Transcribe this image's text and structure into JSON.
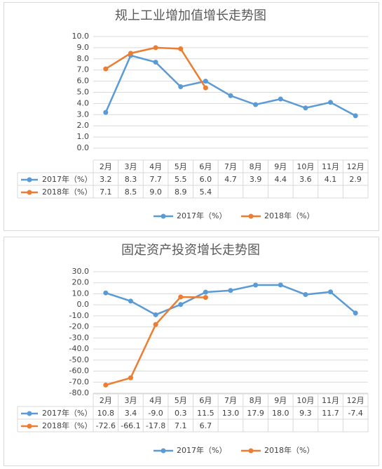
{
  "chart_data": [
    {
      "type": "line",
      "title": "规上工业增加值增长走势图",
      "categories": [
        "2月",
        "3月",
        "4月",
        "5月",
        "6月",
        "7月",
        "8月",
        "9月",
        "10月",
        "11月",
        "12月"
      ],
      "series": [
        {
          "name": "2017年（%）",
          "color": "#5b9bd5",
          "values": [
            3.2,
            8.3,
            7.7,
            5.5,
            6.0,
            4.7,
            3.9,
            4.4,
            3.6,
            4.1,
            2.9
          ],
          "value_labels": [
            "3.2",
            "8.3",
            "7.7",
            "5.5",
            "6.0",
            "4.7",
            "3.9",
            "4.4",
            "3.6",
            "4.1",
            "2.9"
          ]
        },
        {
          "name": "2018年（%）",
          "color": "#ed7d31",
          "values": [
            7.1,
            8.5,
            9.0,
            8.9,
            5.4,
            null,
            null,
            null,
            null,
            null,
            null
          ],
          "value_labels": [
            "7.1",
            "8.5",
            "9.0",
            "8.9",
            "5.4",
            null,
            null,
            null,
            null,
            null,
            null
          ]
        }
      ],
      "ylim": [
        0,
        10
      ],
      "yticks": [
        {
          "value": 0,
          "label": "0.0"
        },
        {
          "value": 1,
          "label": "1.0"
        },
        {
          "value": 2,
          "label": "2.0"
        },
        {
          "value": 3,
          "label": "3.0"
        },
        {
          "value": 4,
          "label": "4.0"
        },
        {
          "value": 5,
          "label": "5.0"
        },
        {
          "value": 6,
          "label": "6.0"
        },
        {
          "value": 7,
          "label": "7.0"
        },
        {
          "value": 8,
          "label": "8.0"
        },
        {
          "value": 9,
          "label": "9.0"
        },
        {
          "value": 10,
          "label": "10.0"
        }
      ],
      "grid": true,
      "legend": "bottom"
    },
    {
      "type": "line",
      "title": "固定资产投资增长走势图",
      "categories": [
        "2月",
        "3月",
        "4月",
        "5月",
        "6月",
        "7月",
        "8月",
        "9月",
        "10月",
        "11月",
        "12月"
      ],
      "series": [
        {
          "name": "2017年（%）",
          "color": "#5b9bd5",
          "values": [
            10.8,
            3.4,
            -9.0,
            0.3,
            11.5,
            13.0,
            17.9,
            18.0,
            9.3,
            11.7,
            -7.4
          ],
          "value_labels": [
            "10.8",
            "3.4",
            "-9.0",
            "0.3",
            "11.5",
            "13.0",
            "17.9",
            "18.0",
            "9.3",
            "11.7",
            "-7.4"
          ]
        },
        {
          "name": "2018年（%）",
          "color": "#ed7d31",
          "values": [
            -72.6,
            -66.1,
            -17.8,
            7.1,
            6.7,
            null,
            null,
            null,
            null,
            null,
            null
          ],
          "value_labels": [
            "-72.6",
            "-66.1",
            "-17.8",
            "7.1",
            "6.7",
            null,
            null,
            null,
            null,
            null,
            null
          ]
        }
      ],
      "ylim": [
        -80,
        30
      ],
      "yticks": [
        {
          "value": -80,
          "label": "-80.0"
        },
        {
          "value": -70,
          "label": "-70.0"
        },
        {
          "value": -60,
          "label": "-60.0"
        },
        {
          "value": -50,
          "label": "-50.0"
        },
        {
          "value": -40,
          "label": "-40.0"
        },
        {
          "value": -30,
          "label": "-30.0"
        },
        {
          "value": -20,
          "label": "-20.0"
        },
        {
          "value": -10,
          "label": "-10.0"
        },
        {
          "value": 0,
          "label": "0.0"
        },
        {
          "value": 10,
          "label": "10.0"
        },
        {
          "value": 20,
          "label": "20.0"
        },
        {
          "value": 30,
          "label": "30.0"
        }
      ],
      "grid": true,
      "legend": "bottom"
    }
  ]
}
